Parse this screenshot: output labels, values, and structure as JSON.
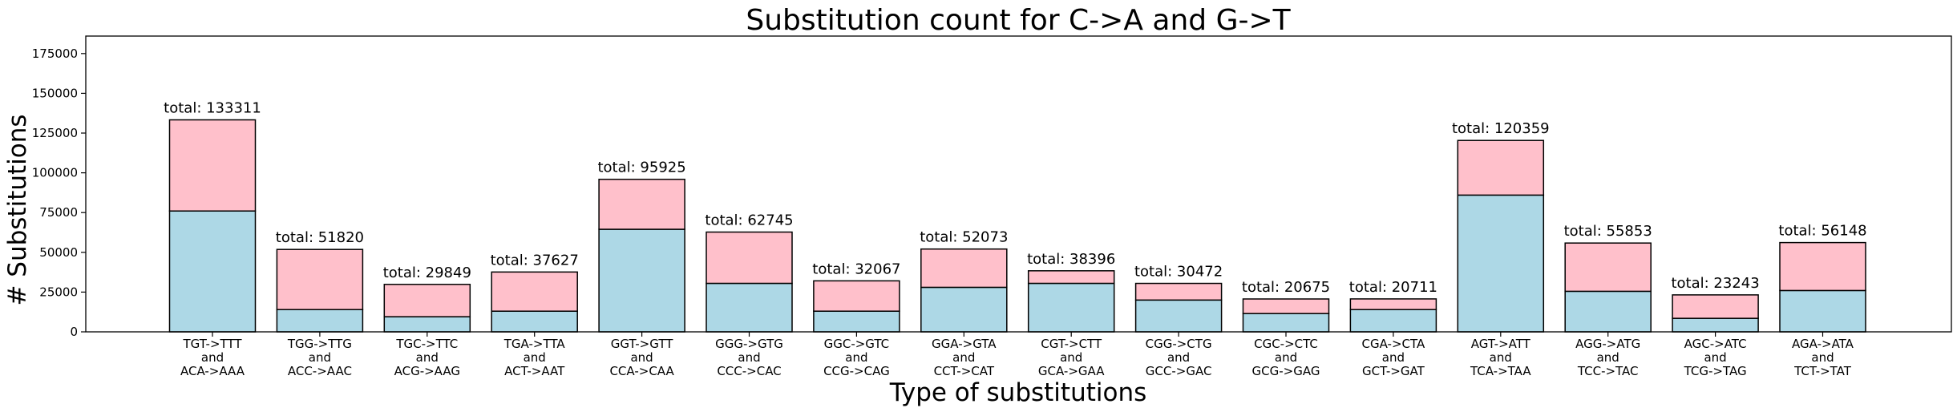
{
  "chart_data": {
    "type": "bar",
    "stacked": true,
    "title": "Substitution count for C->A and G->T",
    "xlabel": "Type of substitutions",
    "ylabel": "# Substitutions",
    "ylim": [
      0,
      186000
    ],
    "yticks": [
      "0",
      "25000",
      "50000",
      "75000",
      "100000",
      "125000",
      "150000",
      "175000"
    ],
    "grid": false,
    "categories": [
      [
        "TGT->TTT",
        "and",
        "ACA->AAA"
      ],
      [
        "TGG->TTG",
        "and",
        "ACC->AAC"
      ],
      [
        "TGC->TTC",
        "and",
        "ACG->AAG"
      ],
      [
        "TGA->TTA",
        "and",
        "ACT->AAT"
      ],
      [
        "GGT->GTT",
        "and",
        "CCA->CAA"
      ],
      [
        "GGG->GTG",
        "and",
        "CCC->CAC"
      ],
      [
        "GGC->GTC",
        "and",
        "CCG->CAG"
      ],
      [
        "GGA->GTA",
        "and",
        "CCT->CAT"
      ],
      [
        "CGT->CTT",
        "and",
        "GCA->GAA"
      ],
      [
        "CGG->CTG",
        "and",
        "GCC->GAC"
      ],
      [
        "CGC->CTC",
        "and",
        "GCG->GAG"
      ],
      [
        "CGA->CTA",
        "and",
        "GCT->GAT"
      ],
      [
        "AGT->ATT",
        "and",
        "TCA->TAA"
      ],
      [
        "AGG->ATG",
        "and",
        "TCC->TAC"
      ],
      [
        "AGC->ATC",
        "and",
        "TCG->TAG"
      ],
      [
        "AGA->ATA",
        "and",
        "TCT->TAT"
      ]
    ],
    "series": [
      {
        "color": "#add8e6",
        "values": [
          76000,
          14000,
          9500,
          13000,
          64500,
          30500,
          13000,
          28000,
          30500,
          20000,
          11500,
          14000,
          86000,
          25500,
          8500,
          26000
        ]
      },
      {
        "color": "#ffc0cb",
        "values": [
          57311,
          37820,
          20349,
          24627,
          31425,
          32245,
          19067,
          24073,
          7896,
          10472,
          9175,
          6711,
          34359,
          30353,
          14743,
          30148
        ]
      }
    ],
    "totals": [
      133311,
      51820,
      29849,
      37627,
      95925,
      62745,
      32067,
      52073,
      38396,
      30472,
      20675,
      20711,
      120359,
      55853,
      23243,
      56148
    ],
    "total_prefix": "total: "
  }
}
